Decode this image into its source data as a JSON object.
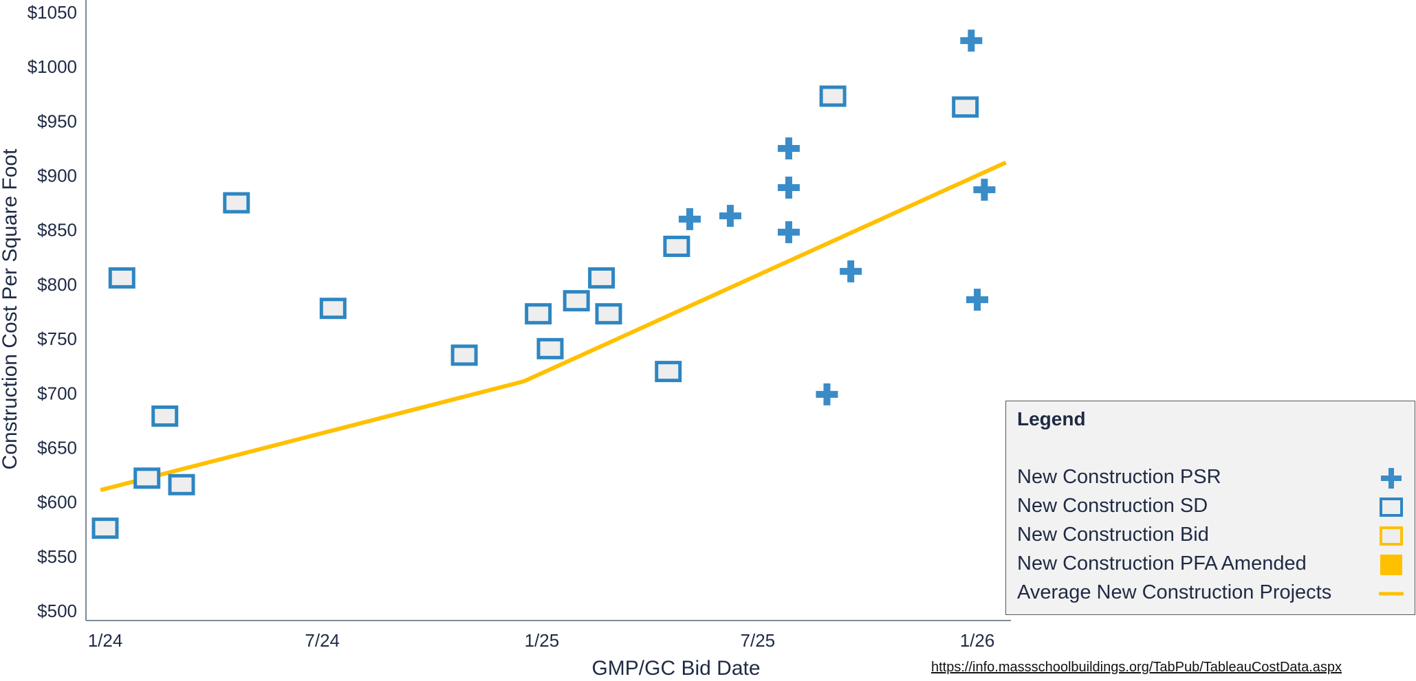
{
  "chart_data": {
    "type": "scatter",
    "xlabel": "GMP/GC Bid Date",
    "ylabel": "Construction Cost Per Square Foot",
    "x_ticks": [
      "1/24",
      "7/24",
      "1/25",
      "7/25",
      "1/26"
    ],
    "x_tick_dates": [
      "2024-01-01",
      "2024-07-01",
      "2025-01-01",
      "2025-07-01",
      "2026-01-01"
    ],
    "ylim": [
      500,
      1050
    ],
    "y_ticks": [
      "$500",
      "$550",
      "$600",
      "$650",
      "$700",
      "$750",
      "$800",
      "$850",
      "$900",
      "$950",
      "$1000",
      "$1050"
    ],
    "y_tick_values": [
      500,
      550,
      600,
      650,
      700,
      750,
      800,
      850,
      900,
      950,
      1000,
      1050
    ],
    "grid": false,
    "colors": {
      "psr": "#3a8cc8",
      "sd": "#2e86c1",
      "bid": "#ffc000",
      "pfa": "#ffc000",
      "average": "#ffc000",
      "marker_fill": "#eeeeee",
      "axis": "#7a8a9a",
      "text": "#1f2a44"
    },
    "series": [
      {
        "name": "New Construction SD",
        "marker": "square",
        "points": [
          {
            "x": "2024-01-01",
            "y": 576
          },
          {
            "x": "2024-01-15",
            "y": 806
          },
          {
            "x": "2024-02-05",
            "y": 622
          },
          {
            "x": "2024-02-20",
            "y": 679
          },
          {
            "x": "2024-03-05",
            "y": 616
          },
          {
            "x": "2024-04-20",
            "y": 875
          },
          {
            "x": "2024-07-10",
            "y": 778
          },
          {
            "x": "2024-10-28",
            "y": 735
          },
          {
            "x": "2024-12-29",
            "y": 773
          },
          {
            "x": "2025-01-08",
            "y": 741
          },
          {
            "x": "2025-01-30",
            "y": 785
          },
          {
            "x": "2025-02-20",
            "y": 806
          },
          {
            "x": "2025-02-26",
            "y": 773
          },
          {
            "x": "2025-04-17",
            "y": 720
          },
          {
            "x": "2025-04-24",
            "y": 835
          },
          {
            "x": "2025-09-02",
            "y": 973
          },
          {
            "x": "2025-12-22",
            "y": 963
          }
        ]
      },
      {
        "name": "New Construction PSR",
        "marker": "plus",
        "points": [
          {
            "x": "2025-05-05",
            "y": 860
          },
          {
            "x": "2025-06-08",
            "y": 863
          },
          {
            "x": "2025-07-27",
            "y": 925
          },
          {
            "x": "2025-07-27",
            "y": 889
          },
          {
            "x": "2025-07-27",
            "y": 848
          },
          {
            "x": "2025-08-28",
            "y": 699
          },
          {
            "x": "2025-09-17",
            "y": 812
          },
          {
            "x": "2025-12-27",
            "y": 1024
          },
          {
            "x": "2026-01-01",
            "y": 786
          },
          {
            "x": "2026-01-07",
            "y": 887
          }
        ]
      },
      {
        "name": "New Construction Bid",
        "marker": "square-outline-yellow",
        "points": []
      },
      {
        "name": "New Construction PFA Amended",
        "marker": "filled-square",
        "points": []
      },
      {
        "name": "Average New Construction Projects",
        "marker": "line",
        "points": [
          {
            "x": "2023-12-28",
            "y": 611
          },
          {
            "x": "2024-12-17",
            "y": 711
          },
          {
            "x": "2026-01-25",
            "y": 912
          }
        ]
      }
    ]
  },
  "legend": {
    "title": "Legend",
    "items": [
      {
        "label": "New Construction PSR",
        "icon": "plus-icon"
      },
      {
        "label": "New Construction SD",
        "icon": "square-outline-blue-icon"
      },
      {
        "label": "New Construction Bid",
        "icon": "square-outline-yellow-icon"
      },
      {
        "label": "New Construction PFA Amended",
        "icon": "filled-square-yellow-icon"
      },
      {
        "label": "Average New Construction Projects",
        "icon": "line-yellow-icon"
      }
    ]
  },
  "source": {
    "url": "https://info.massschoolbuildings.org/TabPub/TableauCostData.aspx"
  }
}
